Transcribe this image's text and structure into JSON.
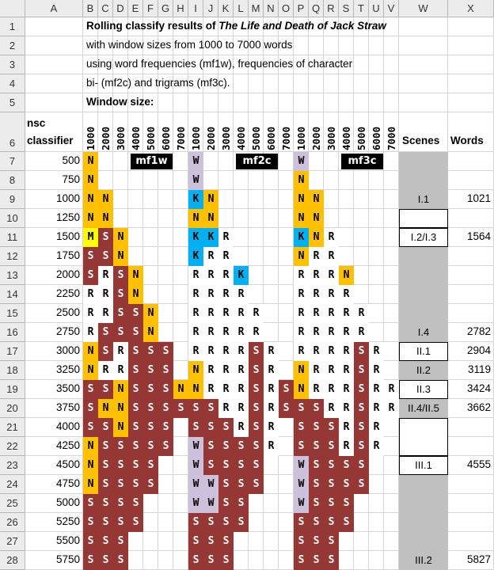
{
  "columns": [
    "A",
    "B",
    "C",
    "D",
    "E",
    "F",
    "G",
    "H",
    "I",
    "J",
    "K",
    "L",
    "M",
    "N",
    "O",
    "P",
    "Q",
    "R",
    "S",
    "T",
    "U",
    "V",
    "W",
    "X"
  ],
  "rows": [
    "1",
    "2",
    "3",
    "4",
    "5",
    "6",
    "7",
    "8",
    "9",
    "10",
    "11",
    "12",
    "13",
    "14",
    "15",
    "16",
    "17",
    "18",
    "19",
    "20",
    "21",
    "22",
    "23",
    "24",
    "25",
    "26",
    "27",
    "28"
  ],
  "title_prefix": "Rolling classify results of ",
  "title_italic": "The Life and Death of Jack Straw",
  "line2": "with window sizes from 1000 to 7000 words",
  "line3": "using word frequencies (mf1w), frequencies of character",
  "line4": "bi- (mf2c) and trigrams (mf3c).",
  "line5": "Window size:",
  "nsc": "nsc",
  "classifier": "classifier",
  "window_labels": [
    "1000",
    "2000",
    "3000",
    "4000",
    "5000",
    "6000",
    "7000"
  ],
  "scenes_header": "Scenes",
  "words_header": "Words",
  "group_tags": [
    "mf1w",
    "mf2c",
    "mf3c"
  ],
  "nsc_values": [
    "500",
    "750",
    "1000",
    "1250",
    "1500",
    "1750",
    "2000",
    "2250",
    "2500",
    "2750",
    "3000",
    "3250",
    "3500",
    "3750",
    "4000",
    "4250",
    "4500",
    "4750",
    "5000",
    "5250",
    "5500",
    "5750"
  ],
  "colors": {
    "N": "#ffc000",
    "S": "#953735",
    "K": "#00b0f0",
    "W": "#ccc0da",
    "M": "#ffff00",
    "R": "#ffffff",
    "grey": "#c0c0c0"
  },
  "grid": [
    "N      |W      |W      ",
    "N      |W      |N      ",
    "NN     |KN     |NN     ",
    "NN     |NN     |NN     ",
    "MSN    |KKR    |KNR    ",
    "SSN    |KRR    |NRR    ",
    "SRSN   |RRRK   |RRRN   ",
    "RRSN   |RRRR   |RRRR   ",
    "RRSSN  |RRRRR  |RRRRR  ",
    "RSSSN  |RRRRR  |RRRRR  ",
    "NSRSSS |RRRRSR |RRRRSR ",
    "NRRSSS |NRRRSR |NRRRSR ",
    "SSNSSSN|NRRRSRS|NRRRSRR",
    "SNNSSSS|SSRRSRS|SSRRSRR",
    "SSNSSS |SSSRSR |SSSRSR ",
    "NSSSSS |WSSSSR |SSSRSR ",
    "NSSSS  |WSSSS  |WSSSS  ",
    "NSSSS  |WWSSS  |WSSSS  ",
    "SSSS   |WWSS   |WSSS   ",
    "SSSS   |SSSS   |SSSS   ",
    "SSS    |SSS    |SSS    ",
    "SSS    |SSS    |SSS    "
  ],
  "scenes": [
    {
      "row": 9,
      "label": "I.1",
      "words": "1021",
      "boxed": false
    },
    {
      "row": 11,
      "label": "I.2/I.3",
      "words": "1564",
      "boxed": true
    },
    {
      "row": 16,
      "label": "I.4",
      "words": "2782",
      "boxed": false
    },
    {
      "row": 17,
      "label": "II.1",
      "words": "2904",
      "boxed": true
    },
    {
      "row": 18,
      "label": "II.2",
      "words": "3119",
      "boxed": false
    },
    {
      "row": 19,
      "label": "II.3",
      "words": "3424",
      "boxed": true
    },
    {
      "row": 20,
      "label": "II.4/II.5",
      "words": "3662",
      "boxed": false
    },
    {
      "row": 23,
      "label": "III.1",
      "words": "4555",
      "boxed": true
    },
    {
      "row": 28,
      "label": "III.2",
      "words": "5827",
      "boxed": false
    }
  ]
}
